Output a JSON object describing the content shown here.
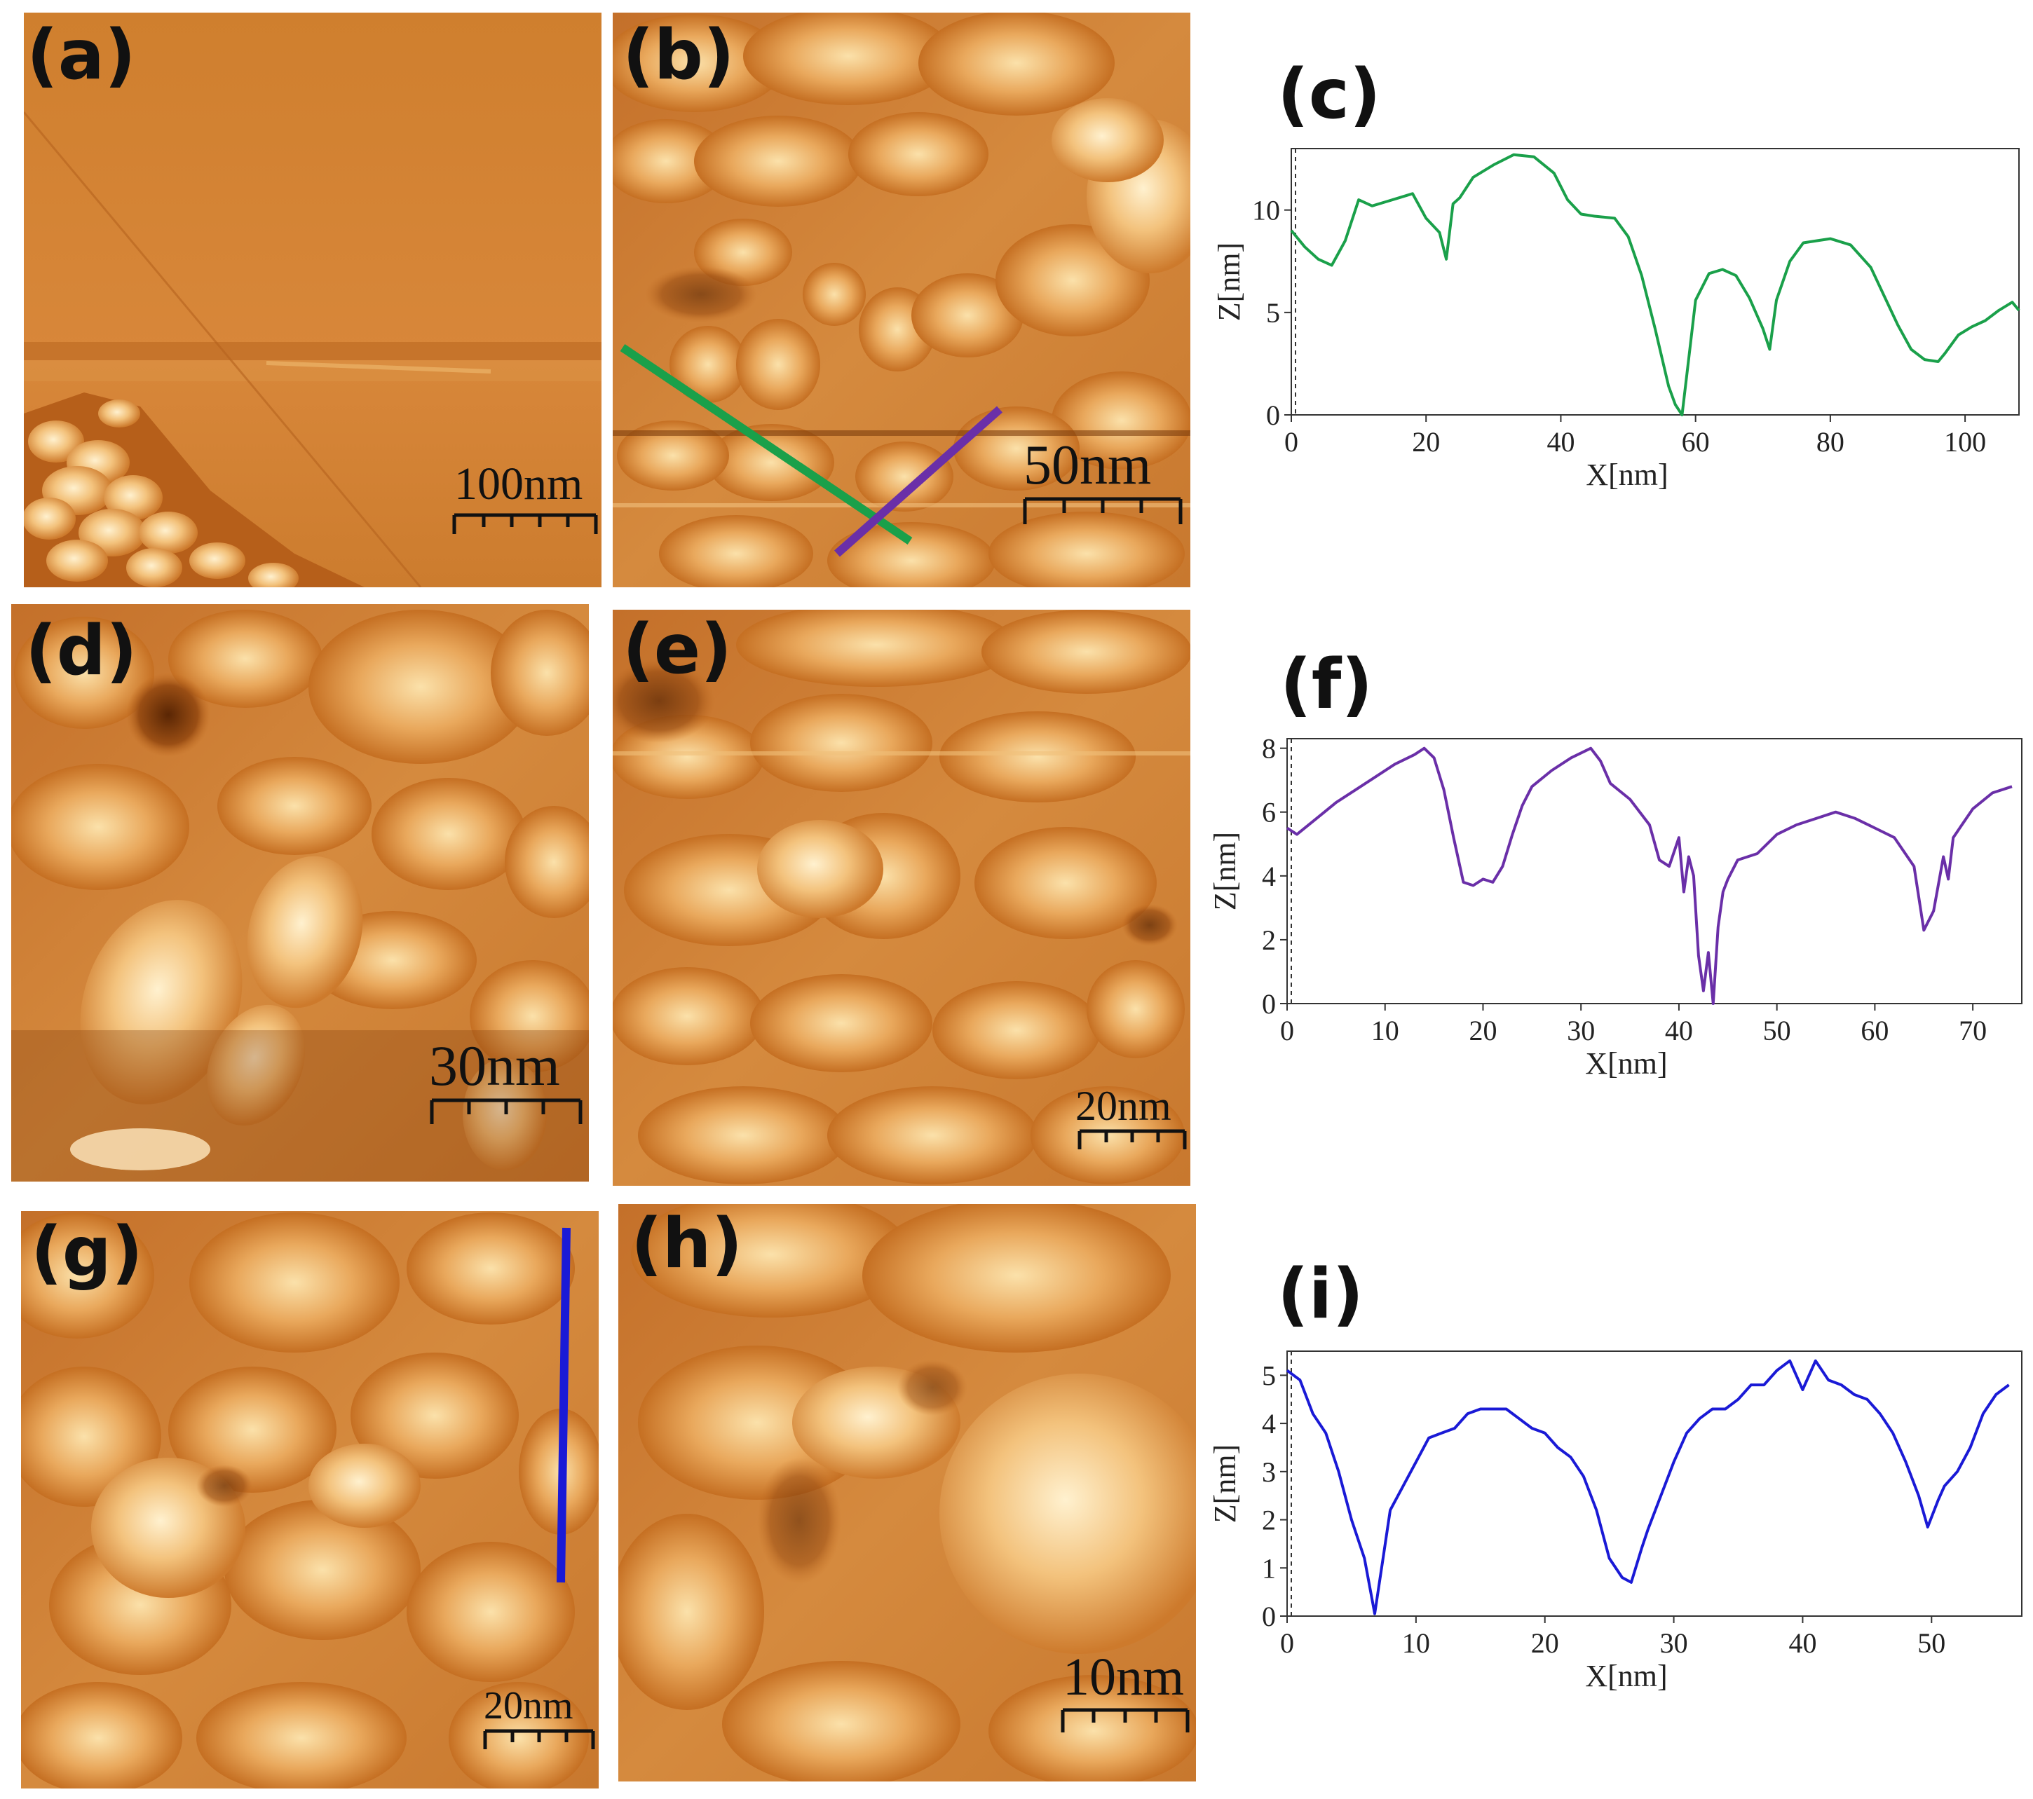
{
  "panels": [
    {
      "id": "a",
      "label": "(a)",
      "scale_bar": "100nm"
    },
    {
      "id": "b",
      "label": "(b)",
      "scale_bar": "50nm"
    },
    {
      "id": "d",
      "label": "(d)",
      "scale_bar": "30nm"
    },
    {
      "id": "e",
      "label": "(e)",
      "scale_bar": "20nm"
    },
    {
      "id": "g",
      "label": "(g)",
      "scale_bar": "20nm"
    },
    {
      "id": "h",
      "label": "(h)",
      "scale_bar": "10nm"
    }
  ],
  "colors": {
    "afm_dark": "#5a2a04",
    "afm_mid": "#c8782a",
    "afm_light": "#f6d59a",
    "profile_c": "#1aa04a",
    "profile_f": "#6a2fa8",
    "profile_i": "#1a1ad6"
  },
  "chart_data": [
    {
      "id": "c",
      "label": "(c)",
      "type": "line",
      "xlabel": "X[nm]",
      "ylabel": "Z[nm]",
      "xlim": [
        0,
        108
      ],
      "ylim": [
        0,
        13
      ],
      "xticks": [
        0,
        20,
        40,
        60,
        80,
        100
      ],
      "yticks": [
        0,
        5,
        10
      ],
      "series": [
        {
          "name": "green profile",
          "color": "#1aa04a",
          "x": [
            0,
            2,
            4,
            6,
            8,
            10,
            12,
            14,
            16,
            18,
            19,
            20,
            22,
            23,
            24,
            25,
            27,
            30,
            33,
            36,
            39,
            41,
            43,
            45,
            48,
            50,
            52,
            54,
            56,
            57,
            58,
            59,
            60,
            62,
            64,
            66,
            68,
            70,
            71,
            72,
            74,
            76,
            78,
            80,
            83,
            86,
            88,
            90,
            92,
            94,
            96,
            97,
            99,
            101,
            103,
            105,
            107,
            108
          ],
          "y": [
            9.0,
            8.2,
            7.6,
            7.3,
            8.5,
            10.5,
            10.2,
            10.4,
            10.6,
            10.8,
            10.2,
            9.6,
            8.9,
            7.6,
            10.3,
            10.6,
            11.6,
            12.2,
            12.7,
            12.6,
            11.8,
            10.5,
            9.8,
            9.7,
            9.6,
            8.7,
            6.8,
            4.2,
            1.4,
            0.5,
            0,
            2.8,
            5.6,
            6.9,
            7.1,
            6.8,
            5.7,
            4.2,
            3.2,
            5.6,
            7.5,
            8.4,
            8.5,
            8.6,
            8.3,
            7.2,
            5.8,
            4.4,
            3.2,
            2.7,
            2.6,
            3.0,
            3.9,
            4.3,
            4.6,
            5.1,
            5.5,
            5.1
          ]
        }
      ]
    },
    {
      "id": "f",
      "label": "(f)",
      "type": "line",
      "xlabel": "X[nm]",
      "ylabel": "Z[nm]",
      "xlim": [
        0,
        75
      ],
      "ylim": [
        0,
        8.3
      ],
      "xticks": [
        0,
        10,
        20,
        30,
        40,
        50,
        60,
        70
      ],
      "yticks": [
        0,
        2,
        4,
        6,
        8
      ],
      "series": [
        {
          "name": "purple profile",
          "color": "#6a2fa8",
          "x": [
            0,
            1,
            3,
            5,
            7,
            9,
            11,
            13,
            14,
            15,
            16,
            17,
            18,
            19,
            20,
            21,
            22,
            23,
            24,
            25,
            27,
            29,
            31,
            32,
            33,
            35,
            37,
            38,
            39,
            40,
            40.5,
            41,
            41.5,
            42,
            42.5,
            43,
            43.5,
            44,
            44.5,
            45,
            46,
            48,
            50,
            52,
            54,
            56,
            58,
            60,
            62,
            64,
            65,
            66,
            67,
            67.5,
            68,
            70,
            72,
            74
          ],
          "y": [
            5.5,
            5.3,
            5.8,
            6.3,
            6.7,
            7.1,
            7.5,
            7.8,
            8.0,
            7.7,
            6.7,
            5.2,
            3.8,
            3.7,
            3.9,
            3.8,
            4.3,
            5.3,
            6.2,
            6.8,
            7.3,
            7.7,
            8.0,
            7.6,
            6.9,
            6.4,
            5.6,
            4.5,
            4.3,
            5.2,
            3.5,
            4.6,
            4.0,
            1.5,
            0.4,
            1.6,
            0.0,
            2.4,
            3.5,
            3.9,
            4.5,
            4.7,
            5.3,
            5.6,
            5.8,
            6.0,
            5.8,
            5.5,
            5.2,
            4.3,
            2.3,
            2.9,
            4.6,
            3.9,
            5.2,
            6.1,
            6.6,
            6.8
          ]
        }
      ]
    },
    {
      "id": "i",
      "label": "(i)",
      "type": "line",
      "xlabel": "X[nm]",
      "ylabel": "Z[nm]",
      "xlim": [
        0,
        57
      ],
      "ylim": [
        0,
        5.5
      ],
      "xticks": [
        0,
        10,
        20,
        30,
        40,
        50
      ],
      "yticks": [
        0,
        1,
        2,
        3,
        4,
        5
      ],
      "series": [
        {
          "name": "blue profile",
          "color": "#1a1ad6",
          "x": [
            0,
            1,
            2,
            3,
            4,
            5,
            6,
            6.8,
            7.5,
            8,
            9,
            10,
            11,
            12,
            13,
            14,
            15,
            17,
            18,
            19,
            20,
            21,
            22,
            23,
            24,
            25,
            26,
            26.7,
            27.5,
            28,
            29,
            30,
            31,
            32,
            33,
            34,
            35,
            36,
            37,
            38,
            39,
            40,
            41,
            42,
            43,
            44,
            45,
            46,
            47,
            48,
            49,
            49.7,
            50.5,
            51,
            52,
            53,
            54,
            55,
            56
          ],
          "y": [
            5.1,
            4.9,
            4.2,
            3.8,
            3.0,
            2.0,
            1.2,
            0.05,
            1.3,
            2.2,
            2.7,
            3.2,
            3.7,
            3.8,
            3.9,
            4.2,
            4.3,
            4.3,
            4.1,
            3.9,
            3.8,
            3.5,
            3.3,
            2.9,
            2.2,
            1.2,
            0.8,
            0.7,
            1.4,
            1.8,
            2.5,
            3.2,
            3.8,
            4.1,
            4.3,
            4.3,
            4.5,
            4.8,
            4.8,
            5.1,
            5.3,
            4.7,
            5.3,
            4.9,
            4.8,
            4.6,
            4.5,
            4.2,
            3.8,
            3.2,
            2.5,
            1.85,
            2.4,
            2.7,
            3.0,
            3.5,
            4.2,
            4.6,
            4.8
          ]
        }
      ]
    }
  ]
}
